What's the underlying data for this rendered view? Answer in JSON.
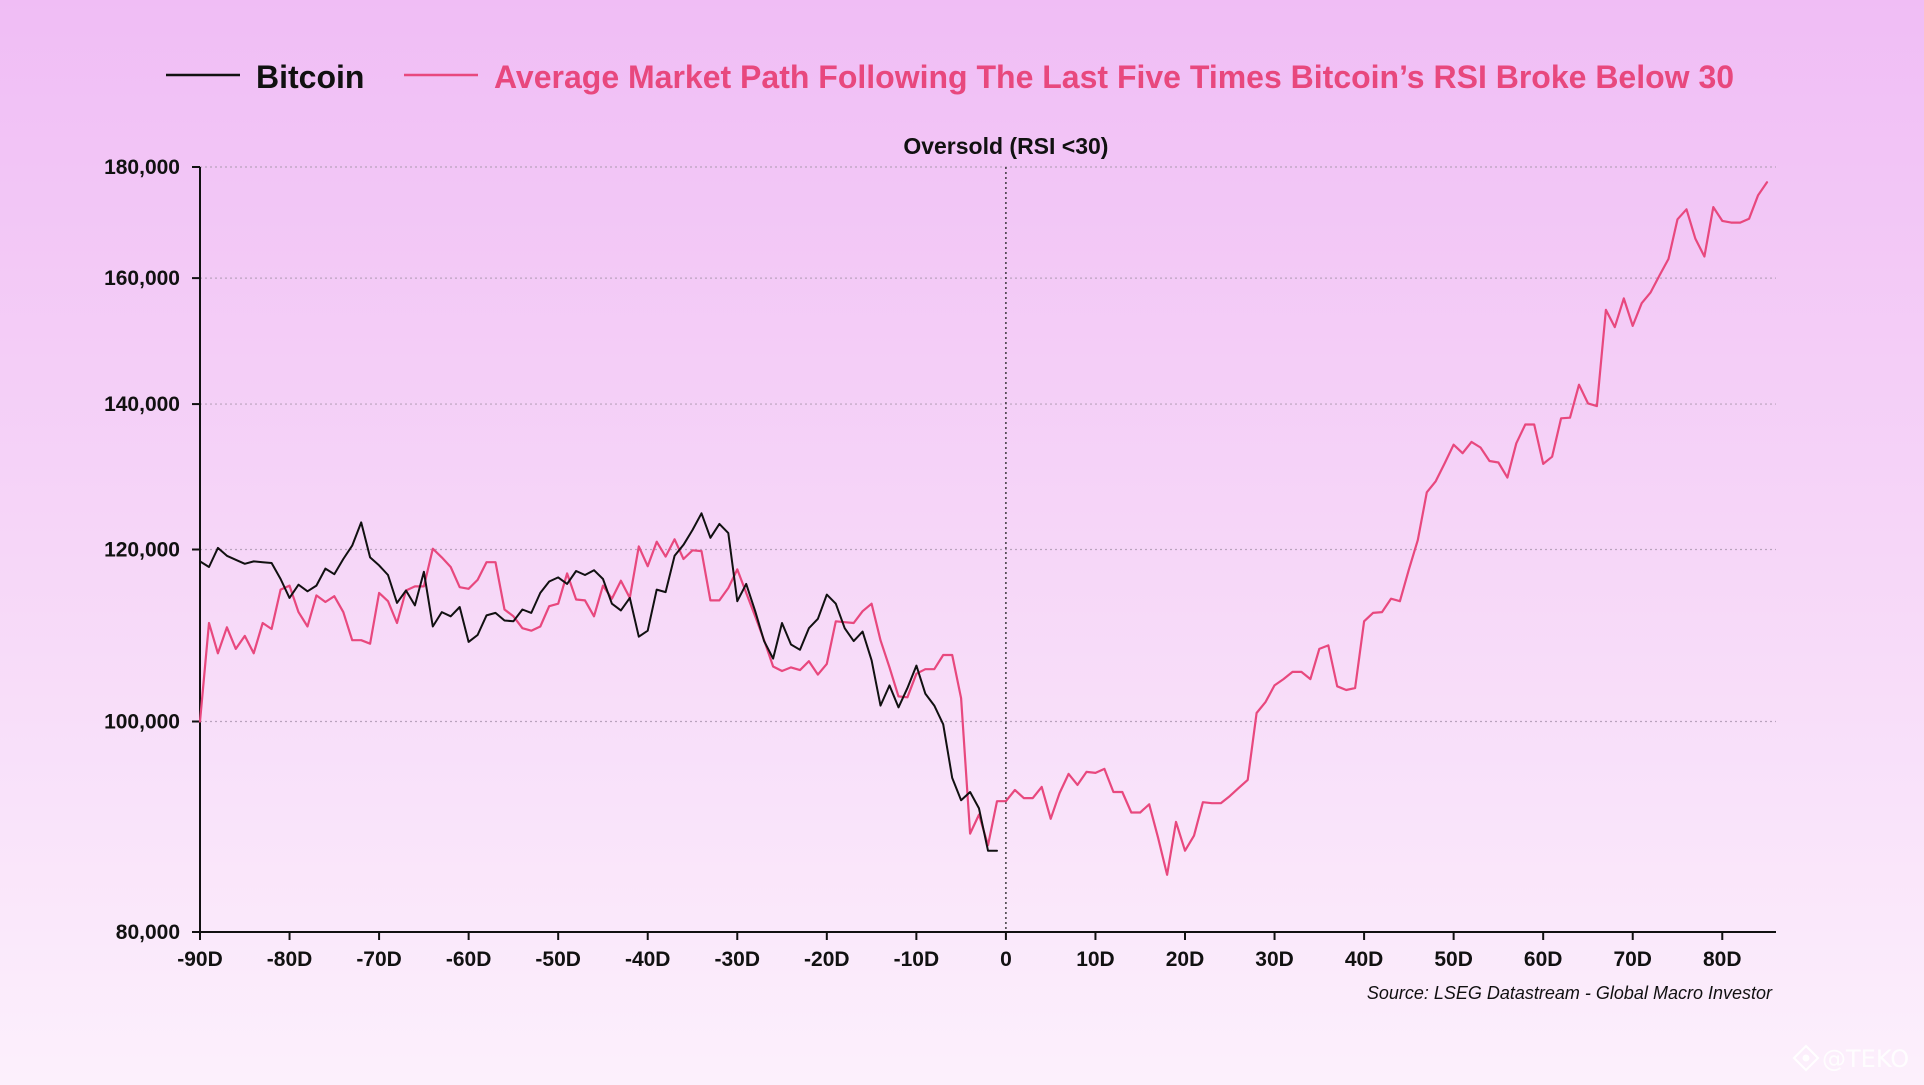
{
  "colors": {
    "bitcoin": "#111111",
    "average": "#e8487e",
    "grid": "#b9a2bd"
  },
  "legend": {
    "bitcoin": "Bitcoin",
    "average": "Average Market Path Following The Last Five Times Bitcoin’s RSI Broke Below 30"
  },
  "annotation": "Oversold (RSI <30)",
  "source": "Source: LSEG Datastream - Global Macro Investor",
  "watermark": {
    "icon": "teko-logo-icon",
    "text": "@TEKO"
  },
  "chart_data": {
    "type": "line",
    "xlim": [
      -90,
      86
    ],
    "ylim": [
      80000,
      180000
    ],
    "yscale": "log",
    "grid": "horizontal-dotted",
    "legend_position": "top",
    "x_ticks": [
      {
        "value": -90,
        "label": "-90D"
      },
      {
        "value": -80,
        "label": "-80D"
      },
      {
        "value": -70,
        "label": "-70D"
      },
      {
        "value": -60,
        "label": "-60D"
      },
      {
        "value": -50,
        "label": "-50D"
      },
      {
        "value": -40,
        "label": "-40D"
      },
      {
        "value": -30,
        "label": "-30D"
      },
      {
        "value": -20,
        "label": "-20D"
      },
      {
        "value": -10,
        "label": "-10D"
      },
      {
        "value": 0,
        "label": "0"
      },
      {
        "value": 10,
        "label": "10D"
      },
      {
        "value": 20,
        "label": "20D"
      },
      {
        "value": 30,
        "label": "30D"
      },
      {
        "value": 40,
        "label": "40D"
      },
      {
        "value": 50,
        "label": "50D"
      },
      {
        "value": 60,
        "label": "60D"
      },
      {
        "value": 70,
        "label": "70D"
      },
      {
        "value": 80,
        "label": "80D"
      }
    ],
    "y_ticks": [
      {
        "value": 80000,
        "label": "80,000"
      },
      {
        "value": 100000,
        "label": "100,000"
      },
      {
        "value": 120000,
        "label": "120,000"
      },
      {
        "value": 140000,
        "label": "140,000"
      },
      {
        "value": 160000,
        "label": "160,000"
      },
      {
        "value": 180000,
        "label": "180,000"
      }
    ],
    "vline": 0,
    "series": [
      {
        "name": "Bitcoin",
        "color": "#111111",
        "points": [
          [
            -90,
            118500
          ],
          [
            -89,
            117800
          ],
          [
            -88,
            120200
          ],
          [
            -87,
            119200
          ],
          [
            -86,
            118700
          ],
          [
            -85,
            118200
          ],
          [
            -84,
            118500
          ],
          [
            -83,
            118400
          ],
          [
            -82,
            118300
          ],
          [
            -81,
            116300
          ],
          [
            -80,
            114000
          ],
          [
            -79,
            115600
          ],
          [
            -78,
            114800
          ],
          [
            -77,
            115500
          ],
          [
            -76,
            117600
          ],
          [
            -75,
            116900
          ],
          [
            -74,
            118800
          ],
          [
            -73,
            120500
          ],
          [
            -72,
            123500
          ],
          [
            -71,
            119000
          ],
          [
            -70,
            118000
          ],
          [
            -69,
            116800
          ],
          [
            -68,
            113400
          ],
          [
            -67,
            114900
          ],
          [
            -66,
            113100
          ],
          [
            -65,
            117200
          ],
          [
            -64,
            110600
          ],
          [
            -63,
            112300
          ],
          [
            -62,
            111800
          ],
          [
            -61,
            112900
          ],
          [
            -60,
            108800
          ],
          [
            -59,
            109600
          ],
          [
            -58,
            111900
          ],
          [
            -57,
            112200
          ],
          [
            -56,
            111300
          ],
          [
            -55,
            111200
          ],
          [
            -54,
            112600
          ],
          [
            -53,
            112200
          ],
          [
            -52,
            114600
          ],
          [
            -51,
            116000
          ],
          [
            -50,
            116500
          ],
          [
            -49,
            115700
          ],
          [
            -48,
            117300
          ],
          [
            -47,
            116800
          ],
          [
            -46,
            117400
          ],
          [
            -45,
            116300
          ],
          [
            -44,
            113300
          ],
          [
            -43,
            112500
          ],
          [
            -42,
            114000
          ],
          [
            -41,
            109400
          ],
          [
            -40,
            110100
          ],
          [
            -39,
            115000
          ],
          [
            -38,
            114700
          ],
          [
            -37,
            119200
          ],
          [
            -36,
            120600
          ],
          [
            -35,
            122500
          ],
          [
            -34,
            124700
          ],
          [
            -33,
            121500
          ],
          [
            -32,
            123300
          ],
          [
            -31,
            122100
          ],
          [
            -30,
            113600
          ],
          [
            -29,
            115700
          ],
          [
            -28,
            112400
          ],
          [
            -27,
            108900
          ],
          [
            -26,
            106900
          ],
          [
            -25,
            111000
          ],
          [
            -24,
            108500
          ],
          [
            -23,
            107900
          ],
          [
            -22,
            110400
          ],
          [
            -21,
            111500
          ],
          [
            -20,
            114400
          ],
          [
            -19,
            113300
          ],
          [
            -18,
            110400
          ],
          [
            -17,
            108900
          ],
          [
            -16,
            110000
          ],
          [
            -15,
            106700
          ],
          [
            -14,
            101700
          ],
          [
            -13,
            103900
          ],
          [
            -12,
            101500
          ],
          [
            -11,
            103600
          ],
          [
            -10,
            106100
          ],
          [
            -9,
            103000
          ],
          [
            -8,
            101700
          ],
          [
            -7,
            99700
          ],
          [
            -6,
            94200
          ],
          [
            -5,
            92000
          ],
          [
            -4,
            92800
          ],
          [
            -3,
            91200
          ],
          [
            -2,
            87200
          ],
          [
            -1,
            87200
          ]
        ]
      },
      {
        "name": "Average Market Path Following The Last Five Times Bitcoin’s RSI Broke Below 30",
        "color": "#e8487e",
        "points": [
          [
            -90,
            100000
          ],
          [
            -89,
            111000
          ],
          [
            -88,
            107500
          ],
          [
            -87,
            110500
          ],
          [
            -86,
            108000
          ],
          [
            -85,
            109500
          ],
          [
            -84,
            107500
          ],
          [
            -83,
            111000
          ],
          [
            -82,
            110300
          ],
          [
            -81,
            115000
          ],
          [
            -80,
            115500
          ],
          [
            -79,
            112300
          ],
          [
            -78,
            110600
          ],
          [
            -77,
            114300
          ],
          [
            -76,
            113500
          ],
          [
            -75,
            114200
          ],
          [
            -74,
            112300
          ],
          [
            -73,
            109000
          ],
          [
            -72,
            109000
          ],
          [
            -71,
            108600
          ],
          [
            -70,
            114600
          ],
          [
            -69,
            113600
          ],
          [
            -68,
            111000
          ],
          [
            -67,
            114900
          ],
          [
            -66,
            115400
          ],
          [
            -65,
            115400
          ],
          [
            -64,
            120100
          ],
          [
            -63,
            119000
          ],
          [
            -62,
            117800
          ],
          [
            -61,
            115300
          ],
          [
            -60,
            115100
          ],
          [
            -59,
            116200
          ],
          [
            -58,
            118400
          ],
          [
            -57,
            118400
          ],
          [
            -56,
            112600
          ],
          [
            -55,
            111800
          ],
          [
            -54,
            110400
          ],
          [
            -53,
            110100
          ],
          [
            -52,
            110600
          ],
          [
            -51,
            113000
          ],
          [
            -50,
            113300
          ],
          [
            -49,
            117000
          ],
          [
            -48,
            113800
          ],
          [
            -47,
            113700
          ],
          [
            -46,
            111800
          ],
          [
            -45,
            115500
          ],
          [
            -44,
            113900
          ],
          [
            -43,
            116100
          ],
          [
            -42,
            114000
          ],
          [
            -41,
            120400
          ],
          [
            -40,
            117900
          ],
          [
            -39,
            121000
          ],
          [
            -38,
            119100
          ],
          [
            -37,
            121300
          ],
          [
            -36,
            118800
          ],
          [
            -35,
            119900
          ],
          [
            -34,
            119800
          ],
          [
            -33,
            113700
          ],
          [
            -32,
            113700
          ],
          [
            -31,
            115200
          ],
          [
            -30,
            117500
          ],
          [
            -29,
            114600
          ],
          [
            -28,
            111800
          ],
          [
            -27,
            109000
          ],
          [
            -26,
            106000
          ],
          [
            -25,
            105500
          ],
          [
            -24,
            105900
          ],
          [
            -23,
            105600
          ],
          [
            -22,
            106600
          ],
          [
            -21,
            105100
          ],
          [
            -20,
            106300
          ],
          [
            -19,
            111200
          ],
          [
            -18,
            111100
          ],
          [
            -17,
            111000
          ],
          [
            -16,
            112400
          ],
          [
            -15,
            113300
          ],
          [
            -14,
            109000
          ],
          [
            -13,
            105900
          ],
          [
            -12,
            102700
          ],
          [
            -11,
            102600
          ],
          [
            -10,
            105200
          ],
          [
            -9,
            105700
          ],
          [
            -8,
            105700
          ],
          [
            -7,
            107300
          ],
          [
            -6,
            107300
          ],
          [
            -5,
            102500
          ],
          [
            -4,
            88800
          ],
          [
            -3,
            90600
          ],
          [
            -2,
            87700
          ],
          [
            -1,
            91900
          ],
          [
            0,
            91900
          ],
          [
            1,
            93000
          ],
          [
            2,
            92200
          ],
          [
            3,
            92200
          ],
          [
            4,
            93300
          ],
          [
            5,
            90200
          ],
          [
            6,
            92700
          ],
          [
            7,
            94600
          ],
          [
            8,
            93500
          ],
          [
            9,
            94800
          ],
          [
            10,
            94700
          ],
          [
            11,
            95100
          ],
          [
            12,
            92800
          ],
          [
            13,
            92800
          ],
          [
            14,
            90800
          ],
          [
            15,
            90800
          ],
          [
            16,
            91600
          ],
          [
            17,
            88400
          ],
          [
            18,
            85000
          ],
          [
            19,
            89900
          ],
          [
            20,
            87200
          ],
          [
            21,
            88600
          ],
          [
            22,
            91800
          ],
          [
            23,
            91700
          ],
          [
            24,
            91700
          ],
          [
            25,
            92400
          ],
          [
            26,
            93200
          ],
          [
            27,
            94000
          ],
          [
            28,
            100900
          ],
          [
            29,
            102100
          ],
          [
            30,
            103900
          ],
          [
            31,
            104600
          ],
          [
            32,
            105400
          ],
          [
            33,
            105400
          ],
          [
            34,
            104600
          ],
          [
            35,
            108000
          ],
          [
            36,
            108400
          ],
          [
            37,
            103800
          ],
          [
            38,
            103400
          ],
          [
            39,
            103600
          ],
          [
            40,
            111200
          ],
          [
            41,
            112200
          ],
          [
            42,
            112300
          ],
          [
            43,
            113900
          ],
          [
            44,
            113600
          ],
          [
            45,
            117500
          ],
          [
            46,
            121200
          ],
          [
            47,
            127500
          ],
          [
            48,
            129000
          ],
          [
            49,
            131500
          ],
          [
            50,
            134100
          ],
          [
            51,
            132900
          ],
          [
            52,
            134500
          ],
          [
            53,
            133700
          ],
          [
            54,
            131800
          ],
          [
            55,
            131600
          ],
          [
            56,
            129500
          ],
          [
            57,
            134300
          ],
          [
            58,
            137000
          ],
          [
            59,
            137000
          ],
          [
            60,
            131400
          ],
          [
            61,
            132400
          ],
          [
            62,
            137900
          ],
          [
            63,
            138000
          ],
          [
            64,
            142900
          ],
          [
            65,
            140100
          ],
          [
            66,
            139700
          ],
          [
            67,
            154700
          ],
          [
            68,
            151900
          ],
          [
            69,
            156600
          ],
          [
            70,
            152100
          ],
          [
            71,
            155800
          ],
          [
            72,
            157600
          ],
          [
            73,
            160500
          ],
          [
            74,
            163300
          ],
          [
            75,
            170300
          ],
          [
            76,
            172100
          ],
          [
            77,
            166800
          ],
          [
            78,
            163700
          ],
          [
            79,
            172500
          ],
          [
            80,
            170000
          ],
          [
            81,
            169700
          ],
          [
            82,
            169700
          ],
          [
            83,
            170400
          ],
          [
            84,
            174700
          ],
          [
            85,
            177100
          ]
        ]
      }
    ]
  }
}
